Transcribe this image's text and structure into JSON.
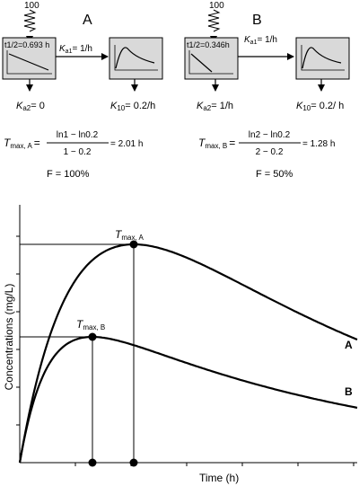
{
  "diagram": {
    "panel_a": {
      "letter": "A",
      "dose": "100",
      "half_life": "t1/2=0.693 h",
      "ka1_prefix": "K",
      "ka1_sub": "a1",
      "ka1_value": "= 1/h",
      "ka2_prefix": "K",
      "ka2_sub": "a2",
      "ka2_value": "= 0",
      "k10_prefix": "K",
      "k10_sub": "10",
      "k10_value": "= 0.2/h",
      "tmax_prefix": "T",
      "tmax_sub": "max, A",
      "formula_eq": "=",
      "formula_num": "ln1 − ln0.2",
      "formula_den": "1 − 0.2",
      "formula_result": "= 2.01 h",
      "bioavailability": "F = 100%"
    },
    "panel_b": {
      "letter": "B",
      "dose": "100",
      "half_life": "t1/2=0.346h",
      "ka1_prefix": "K",
      "ka1_sub": "a1",
      "ka1_value": "= 1/h",
      "ka2_prefix": "K",
      "ka2_sub": "a2",
      "ka2_value": "= 1/h",
      "k10_prefix": "K",
      "k10_sub": "10",
      "k10_value": "= 0.2/ h",
      "tmax_prefix": "T",
      "tmax_sub": "max, B",
      "formula_eq": "=",
      "formula_num": "ln2 − ln0.2",
      "formula_den": "2 − 0.2",
      "formula_result": "= 1.28 h",
      "bioavailability": "F = 50%"
    }
  },
  "chart": {
    "ylabel": "Concentrations (mg/L)",
    "xlabel": "Time (h)",
    "tmax_a_prefix": "T",
    "tmax_a_sub": "max, A",
    "tmax_b_prefix": "T",
    "tmax_b_sub": "max, B",
    "curve_a_label": "A",
    "curve_b_label": "B",
    "line_color": "#000000"
  },
  "chart_data": {
    "type": "line",
    "xlabel": "Time (h)",
    "ylabel": "Concentrations (mg/L)",
    "xlim": [
      0,
      10
    ],
    "ylim": [
      0,
      100
    ],
    "tick_labels_shown": false,
    "series": [
      {
        "name": "A",
        "model": "one-compartment oral absorption, F=100%",
        "ka": 1.0,
        "k10": 0.2,
        "tmax": 2.01
      },
      {
        "name": "B",
        "model": "one-compartment oral absorption, F=50%",
        "ka": 2.0,
        "k10": 0.2,
        "tmax": 1.28
      }
    ]
  }
}
